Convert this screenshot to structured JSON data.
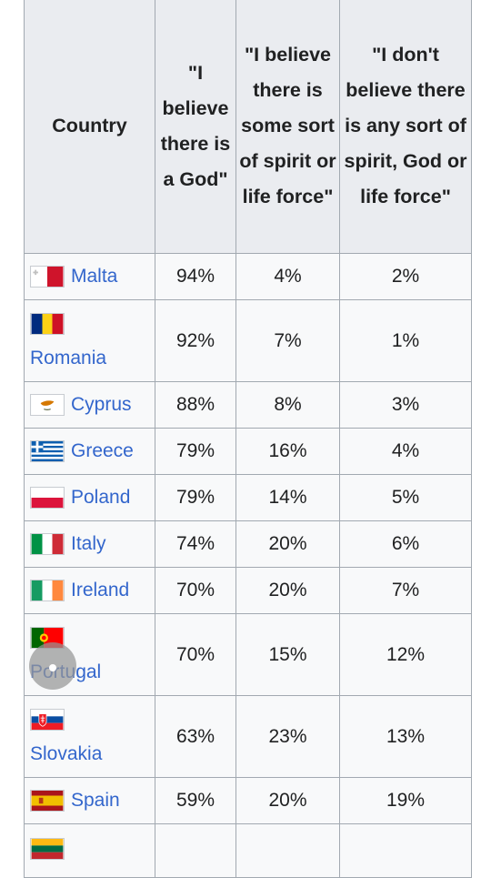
{
  "headers": {
    "country": "Country",
    "god": "\"I believe there is a God\"",
    "spirit": "\"I believe there is some sort of spirit or life force\"",
    "none": "\"I don't believe there is any sort of spirit, God or life force\""
  },
  "rows": [
    {
      "country": "Malta",
      "flag": "malta-flag-icon",
      "god": "94%",
      "spirit": "4%",
      "none": "2%"
    },
    {
      "country": "Romania",
      "flag": "romania-flag-icon",
      "god": "92%",
      "spirit": "7%",
      "none": "1%"
    },
    {
      "country": "Cyprus",
      "flag": "cyprus-flag-icon",
      "god": "88%",
      "spirit": "8%",
      "none": "3%"
    },
    {
      "country": "Greece",
      "flag": "greece-flag-icon",
      "god": "79%",
      "spirit": "16%",
      "none": "4%"
    },
    {
      "country": "Poland",
      "flag": "poland-flag-icon",
      "god": "79%",
      "spirit": "14%",
      "none": "5%"
    },
    {
      "country": "Italy",
      "flag": "italy-flag-icon",
      "god": "74%",
      "spirit": "20%",
      "none": "6%"
    },
    {
      "country": "Ireland",
      "flag": "ireland-flag-icon",
      "god": "70%",
      "spirit": "20%",
      "none": "7%"
    },
    {
      "country": "Portugal",
      "flag": "portugal-flag-icon",
      "god": "70%",
      "spirit": "15%",
      "none": "12%"
    },
    {
      "country": "Slovakia",
      "flag": "slovakia-flag-icon",
      "god": "63%",
      "spirit": "23%",
      "none": "13%"
    },
    {
      "country": "Spain",
      "flag": "spain-flag-icon",
      "god": "59%",
      "spirit": "20%",
      "none": "19%"
    }
  ],
  "partial_row": {
    "flag": "lithuania-flag-icon"
  },
  "colors": {
    "link": "#3366cc",
    "header_bg": "#eaecf0",
    "cell_bg": "#f8f9fa",
    "border": "#a2a9b1"
  }
}
